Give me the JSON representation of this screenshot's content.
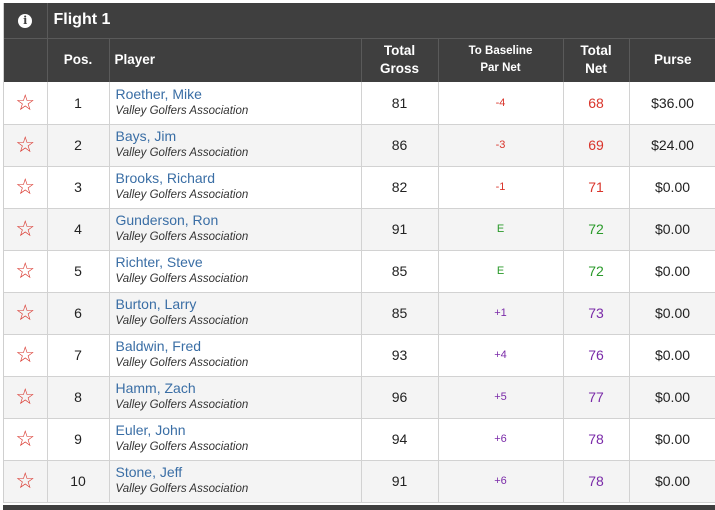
{
  "flight": {
    "title": "Flight 1",
    "info_icon": "info-icon"
  },
  "columns": {
    "pos": "Pos.",
    "player": "Player",
    "gross_line1": "Total",
    "gross_line2": "Gross",
    "base_line1": "To Baseline",
    "base_line2": "Par Net",
    "net_line1": "Total",
    "net_line2": "Net",
    "purse": "Purse"
  },
  "colors": {
    "under": "#d9342b",
    "even": "#2a9a2a",
    "over": "#7a2aa8",
    "star": "#d9342b"
  },
  "rows": [
    {
      "pos": "1",
      "name": "Roether, Mike",
      "assoc": "Valley Golfers Association",
      "gross": "81",
      "baseline": "-4",
      "net": "68",
      "purse": "$36.00",
      "status": "under"
    },
    {
      "pos": "2",
      "name": "Bays, Jim",
      "assoc": "Valley Golfers Association",
      "gross": "86",
      "baseline": "-3",
      "net": "69",
      "purse": "$24.00",
      "status": "under"
    },
    {
      "pos": "3",
      "name": "Brooks, Richard",
      "assoc": "Valley Golfers Association",
      "gross": "82",
      "baseline": "-1",
      "net": "71",
      "purse": "$0.00",
      "status": "under"
    },
    {
      "pos": "4",
      "name": "Gunderson, Ron",
      "assoc": "Valley Golfers Association",
      "gross": "91",
      "baseline": "E",
      "net": "72",
      "purse": "$0.00",
      "status": "even"
    },
    {
      "pos": "5",
      "name": "Richter, Steve",
      "assoc": "Valley Golfers Association",
      "gross": "85",
      "baseline": "E",
      "net": "72",
      "purse": "$0.00",
      "status": "even"
    },
    {
      "pos": "6",
      "name": "Burton, Larry",
      "assoc": "Valley Golfers Association",
      "gross": "85",
      "baseline": "+1",
      "net": "73",
      "purse": "$0.00",
      "status": "over"
    },
    {
      "pos": "7",
      "name": "Baldwin, Fred",
      "assoc": "Valley Golfers Association",
      "gross": "93",
      "baseline": "+4",
      "net": "76",
      "purse": "$0.00",
      "status": "over"
    },
    {
      "pos": "8",
      "name": "Hamm, Zach",
      "assoc": "Valley Golfers Association",
      "gross": "96",
      "baseline": "+5",
      "net": "77",
      "purse": "$0.00",
      "status": "over"
    },
    {
      "pos": "9",
      "name": "Euler, John",
      "assoc": "Valley Golfers Association",
      "gross": "94",
      "baseline": "+6",
      "net": "78",
      "purse": "$0.00",
      "status": "over"
    },
    {
      "pos": "10",
      "name": "Stone, Jeff",
      "assoc": "Valley Golfers Association",
      "gross": "91",
      "baseline": "+6",
      "net": "78",
      "purse": "$0.00",
      "status": "over"
    }
  ]
}
